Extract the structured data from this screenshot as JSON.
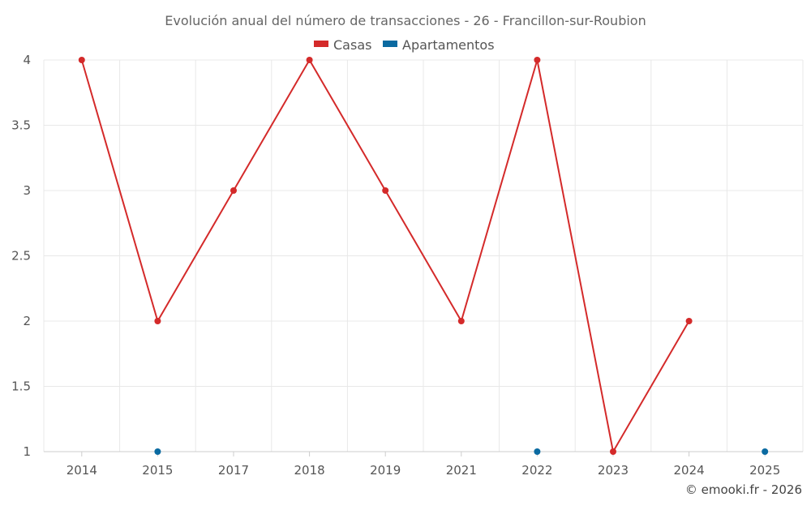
{
  "chart_data": {
    "type": "line",
    "title": "Evolución anual del número de transacciones - 26 - Francillon-sur-Roubion",
    "categories": [
      "2014",
      "2015",
      "2017",
      "2018",
      "2019",
      "2021",
      "2022",
      "2023",
      "2024",
      "2025"
    ],
    "series": [
      {
        "name": "Casas",
        "color": "#d42a2a",
        "values": [
          4,
          2,
          3,
          4,
          3,
          2,
          4,
          1,
          2,
          null
        ]
      },
      {
        "name": "Apartamentos",
        "color": "#0a6aa1",
        "values": [
          null,
          1,
          null,
          null,
          null,
          null,
          1,
          null,
          null,
          1
        ]
      }
    ],
    "ylim": [
      1,
      4
    ],
    "yticks": [
      "1",
      "1.5",
      "2",
      "2.5",
      "3",
      "3.5",
      "4"
    ],
    "legend_position": "top-center",
    "grid": true,
    "credit": "© emooki.fr - 2026"
  }
}
